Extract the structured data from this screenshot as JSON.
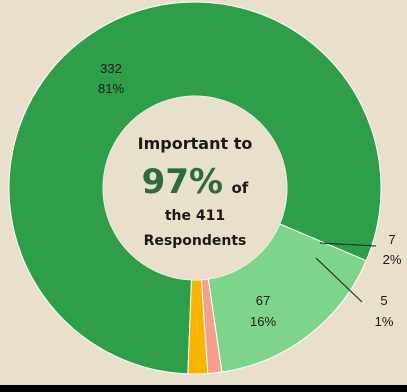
{
  "colors": {
    "background": "#e9e0cc",
    "center": "#e9e0cc",
    "bottom_bar": "#000000",
    "accent_text": "#2e6b3a"
  },
  "center": {
    "line1": "Important to",
    "big": "97%",
    "big_suffix": "of",
    "line3": "the 411",
    "line4": "Respondents"
  },
  "chart_data": {
    "type": "pie",
    "title": "",
    "total": 411,
    "slices": [
      {
        "count": "332",
        "percent": "81%",
        "value": 332,
        "color": "#2e9e4b"
      },
      {
        "count": "67",
        "percent": "16%",
        "value": 67,
        "color": "#7fd48b"
      },
      {
        "count": "5",
        "percent": "1%",
        "value": 5,
        "color": "#f2a28c"
      },
      {
        "count": "7",
        "percent": "2%",
        "value": 7,
        "color": "#f4b400"
      }
    ]
  }
}
